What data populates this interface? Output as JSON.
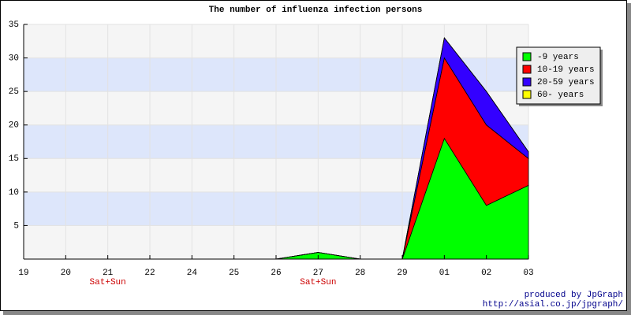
{
  "chart_data": {
    "type": "stacked_area",
    "title": "The number of influenza infection persons",
    "categories": [
      "19",
      "20",
      "21",
      "22",
      "24",
      "25",
      "26",
      "27",
      "28",
      "29",
      "01",
      "02",
      "03"
    ],
    "sublabels": [
      null,
      null,
      "Sat+Sun",
      null,
      null,
      null,
      null,
      "Sat+Sun",
      null,
      null,
      null,
      null,
      null
    ],
    "series": [
      {
        "name": "-9 years",
        "color": "#00ff00",
        "values": [
          0,
          0,
          0,
          0,
          0,
          0,
          0,
          1,
          0,
          0,
          18,
          8,
          11
        ]
      },
      {
        "name": "10-19 years",
        "color": "#ff0000",
        "values": [
          0,
          0,
          0,
          0,
          0,
          0,
          0,
          0,
          0,
          0,
          12,
          12,
          4
        ]
      },
      {
        "name": "20-59 years",
        "color": "#3300ff",
        "values": [
          0,
          0,
          0,
          0,
          0,
          0,
          0,
          0,
          0,
          0,
          3,
          5,
          1
        ]
      },
      {
        "name": "60- years",
        "color": "#ffff00",
        "values": [
          0,
          0,
          0,
          0,
          0,
          0,
          0,
          0,
          0,
          0,
          0,
          0,
          0
        ]
      }
    ],
    "ylim": [
      0,
      35
    ],
    "yticks": [
      5,
      10,
      15,
      20,
      25,
      30,
      35
    ],
    "grid": true,
    "legend": "top-right",
    "footer": [
      "produced by JpGraph",
      "http://asial.co.jp/jpgraph/"
    ]
  }
}
